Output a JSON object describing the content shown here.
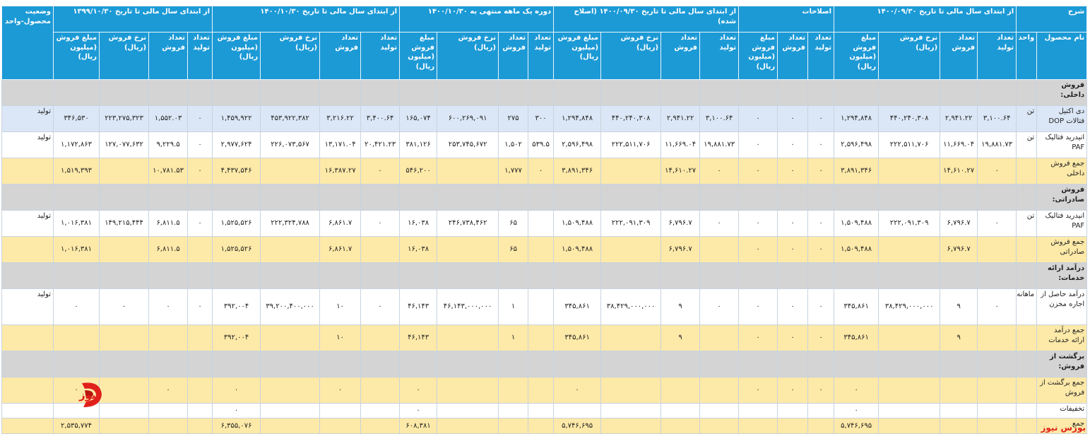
{
  "header": {
    "groups": [
      "شرح",
      "از ابتدای سال مالی تا تاریخ ۱۴۰۰/۰۹/۳۰",
      "اصلاحات",
      "از ابتدای سال مالی تا تاریخ ۱۴۰۰/۰۹/۳۰ (اصلاح شده)",
      "دوره یک ماهه منتهی به ۱۴۰۰/۱۰/۳۰",
      "از ابتدای سال مالی تا تاریخ ۱۴۰۰/۱۰/۳۰",
      "از ابتدای سال مالی تا تاریخ ۱۳۹۹/۱۰/۳۰",
      "وضعیت محصول-واحد"
    ],
    "columns": [
      "نام محصول",
      "واحد",
      "تعداد تولید",
      "تعداد فروش",
      "نرخ فروش (ریال)",
      "مبلغ فروش (میلیون ریال)",
      "تعداد تولید",
      "تعداد فروش",
      "مبلغ فروش (میلیون ریال)",
      "تعداد تولید",
      "تعداد فروش",
      "نرخ فروش (ریال)",
      "مبلغ فروش (میلیون ریال)",
      "تعداد تولید",
      "تعداد فروش",
      "نرخ فروش (ریال)",
      "مبلغ فروش (میلیون ریال)",
      "تعداد تولید",
      "تعداد فروش",
      "نرخ فروش (ریال)",
      "مبلغ فروش (میلیون ریال)",
      "تعداد تولید",
      "تعداد فروش",
      "نرخ فروش (ریال)",
      "مبلغ فروش (میلیون ریال)"
    ]
  },
  "table": {
    "sections": [
      {
        "title": "فروش داخلی:",
        "items": [
          [
            "دی اکتیل فتالات DOP",
            "تن",
            "۳,۱۰۰.۶۴",
            "۲,۹۴۱.۲۲",
            "۴۴۰,۲۴۰,۳۰۸",
            "۱,۲۹۴,۸۴۸",
            "۰",
            "۰",
            "۰",
            "۳,۱۰۰.۶۴",
            "۲,۹۴۱.۲۲",
            "۴۴۰,۲۴۰,۳۰۸",
            "۱,۲۹۴,۸۴۸",
            "۳۰۰",
            "۲۷۵",
            "۶۰۰,۲۶۹,۰۹۱",
            "۱۶۵,۰۷۴",
            "۳,۴۰۰.۶۴",
            "۳,۲۱۶.۲۲",
            "۴۵۳,۹۲۲,۳۸۲",
            "۱,۴۵۹,۹۲۲",
            "۰",
            "۱,۵۵۲.۰۳",
            "۲۲۳,۲۷۵,۳۲۳",
            "۳۴۶,۵۳۰",
            "تولید"
          ],
          [
            "انیدرید فتالیک PAF",
            "تن",
            "۱۹,۸۸۱.۷۳",
            "۱۱,۶۶۹.۰۴",
            "۲۲۲,۵۱۱,۷۰۶",
            "۲,۵۹۶,۴۹۸",
            "۰",
            "۰",
            "۰",
            "۱۹,۸۸۱.۷۳",
            "۱۱,۶۶۹.۰۴",
            "۲۲۲,۵۱۱,۷۰۶",
            "۲,۵۹۶,۴۹۸",
            "۵۳۹.۵",
            "۱,۵۰۲",
            "۲۵۳,۷۴۵,۶۷۲",
            "۳۸۱,۱۲۶",
            "۲۰,۴۲۱.۲۳",
            "۱۳,۱۷۱.۰۴",
            "۲۲۶,۰۷۳,۵۶۷",
            "۲,۹۷۷,۶۲۴",
            "۰",
            "۹,۲۲۹.۵",
            "۱۲۷,۰۷۷,۶۳۲",
            "۱,۱۷۲,۸۶۳",
            "تولید"
          ]
        ],
        "total": [
          "جمع فروش داخلی",
          null,
          "۰",
          "۱۴,۶۱۰.۲۷",
          null,
          "۳,۸۹۱,۳۴۶",
          "۰",
          "۰",
          "۰",
          "۰",
          "۱۴,۶۱۰.۲۷",
          null,
          "۳,۸۹۱,۳۴۶",
          "۰",
          "۱,۷۷۷",
          null,
          "۵۴۶,۲۰۰",
          "۰",
          "۱۶,۳۸۷.۲۷",
          null,
          "۴,۴۳۷,۵۴۶",
          "۰",
          "۱۰,۷۸۱.۵۳",
          null,
          "۱,۵۱۹,۳۹۳",
          null
        ]
      },
      {
        "title": "فروش صادراتی:",
        "items": [
          [
            "انیدرید فتالیک PAF",
            "تن",
            "۰",
            "۶,۷۹۶.۷",
            "۲۲۲,۰۹۱,۳۰۹",
            "۱,۵۰۹,۴۸۸",
            "۰",
            "۰",
            "۰",
            "۰",
            "۶,۷۹۶.۷",
            "۲۲۲,۰۹۱,۳۰۹",
            "۱,۵۰۹,۴۸۸",
            null,
            "۶۵",
            "۲۴۶,۷۳۸,۴۶۲",
            "۱۶,۰۳۸",
            "۰",
            "۶,۸۶۱.۷",
            "۲۲۲,۳۲۴,۷۸۸",
            "۱,۵۲۵,۵۲۶",
            "۰",
            "۶,۸۱۱.۵",
            "۱۴۹,۲۱۵,۴۴۴",
            "۱,۰۱۶,۳۸۱",
            "تولید"
          ]
        ],
        "total": [
          "جمع فروش صادراتی",
          null,
          null,
          "۶,۷۹۶.۷",
          null,
          "۱,۵۰۹,۴۸۸",
          "۰",
          "۰",
          "۰",
          null,
          "۶,۷۹۶.۷",
          null,
          "۱,۵۰۹,۴۸۸",
          null,
          "۶۵",
          null,
          "۱۶,۰۳۸",
          null,
          "۶,۸۶۱.۷",
          null,
          "۱,۵۲۵,۵۲۶",
          null,
          "۶,۸۱۱.۵",
          null,
          "۱,۰۱۶,۳۸۱",
          null
        ]
      },
      {
        "title": "درآمد ارائه خدمات:",
        "items": [
          [
            "درآمد حاصل از اجاره مخزن",
            "ماهانه",
            "۰",
            "۹",
            "۳۸,۴۲۹,۰۰۰,۰۰۰",
            "۳۴۵,۸۶۱",
            "۰",
            "۰",
            "۰",
            "۰",
            "۹",
            "۳۸,۴۲۹,۰۰۰,۰۰۰",
            "۳۴۵,۸۶۱",
            null,
            "۱",
            "۴۶,۱۴۳,۰۰۰,۰۰۰",
            "۴۶,۱۴۳",
            "۰",
            "۱۰",
            "۳۹,۲۰۰,۴۰۰,۰۰۰",
            "۳۹۲,۰۰۴",
            "۰",
            "۰",
            "۰",
            "۰",
            "تولید"
          ]
        ],
        "total": [
          "جمع درآمد ارائه خدمات",
          null,
          null,
          "۹",
          null,
          "۳۴۵,۸۶۱",
          "۰",
          "۰",
          "۰",
          null,
          "۹",
          null,
          "۳۴۵,۸۶۱",
          null,
          "۱",
          null,
          "۴۶,۱۴۳",
          null,
          "۱۰",
          null,
          "۳۹۲,۰۰۴",
          null,
          null,
          null,
          null,
          null
        ]
      },
      {
        "title": "برگشت از فروش:",
        "items": [],
        "total": [
          "جمع برگشت از فروش",
          null,
          null,
          null,
          null,
          "۰",
          "۰",
          "۰",
          "۰",
          null,
          null,
          null,
          "۰",
          null,
          null,
          null,
          "۰",
          null,
          "۰",
          null,
          "۰",
          null,
          "۰",
          null,
          "۰",
          null
        ]
      }
    ],
    "discounts": [
      "تخفیفات",
      null,
      null,
      null,
      null,
      "۰",
      null,
      null,
      null,
      null,
      null,
      null,
      null,
      null,
      null,
      null,
      "۰",
      null,
      null,
      null,
      "۰",
      null,
      null,
      null,
      null,
      null
    ],
    "grand_total": [
      "جمع",
      null,
      null,
      null,
      null,
      "۵,۷۴۶,۶۹۵",
      null,
      null,
      null,
      null,
      null,
      null,
      "۵,۷۴۶,۶۹۵",
      null,
      null,
      null,
      "۶۰۸,۳۸۱",
      null,
      null,
      null,
      "۶,۳۵۵,۰۷۶",
      null,
      null,
      null,
      "۲,۵۳۵,۷۷۴",
      null
    ]
  },
  "watermark": {
    "text": "بورس نیوز"
  }
}
